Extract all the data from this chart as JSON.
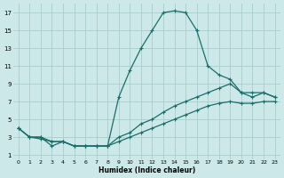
{
  "bg_color": "#cce8e8",
  "grid_color": "#aacccc",
  "line_color": "#1a6e6a",
  "xlabel": "Humidex (Indice chaleur)",
  "xlim": [
    -0.5,
    23.5
  ],
  "ylim": [
    0.5,
    18.0
  ],
  "xticks": [
    0,
    1,
    2,
    3,
    4,
    5,
    6,
    7,
    8,
    9,
    10,
    11,
    12,
    13,
    14,
    15,
    16,
    17,
    18,
    19,
    20,
    21,
    22,
    23
  ],
  "yticks": [
    1,
    3,
    5,
    7,
    9,
    11,
    13,
    15,
    17
  ],
  "line1_x": [
    0,
    1,
    2,
    3,
    4,
    5,
    6,
    7,
    8,
    9,
    10,
    11,
    12,
    13,
    14,
    15,
    16,
    17,
    18,
    19,
    20,
    21,
    22,
    23
  ],
  "line1_y": [
    4,
    3,
    3,
    2,
    2.5,
    2,
    2,
    2,
    2,
    7.5,
    10.5,
    13,
    15,
    17,
    17.2,
    17,
    15,
    11,
    10,
    9.5,
    8,
    7.5,
    8,
    7.5
  ],
  "line2_x": [
    0,
    1,
    2,
    3,
    4,
    5,
    6,
    7,
    8,
    9,
    10,
    11,
    12,
    13,
    14,
    15,
    16,
    17,
    18,
    19,
    20,
    21,
    22,
    23
  ],
  "line2_y": [
    4,
    3,
    3,
    2.5,
    2.5,
    2,
    2,
    2,
    2,
    3,
    3.5,
    4.5,
    5,
    5.8,
    6.5,
    7,
    7.5,
    8,
    8.5,
    9,
    8,
    8,
    8,
    7.5
  ],
  "line3_x": [
    0,
    1,
    2,
    3,
    4,
    5,
    6,
    7,
    8,
    9,
    10,
    11,
    12,
    13,
    14,
    15,
    16,
    17,
    18,
    19,
    20,
    21,
    22,
    23
  ],
  "line3_y": [
    4,
    3,
    2.8,
    2.5,
    2.5,
    2,
    2,
    2,
    2,
    2.5,
    3,
    3.5,
    4,
    4.5,
    5,
    5.5,
    6,
    6.5,
    6.8,
    7,
    6.8,
    6.8,
    7,
    7
  ]
}
